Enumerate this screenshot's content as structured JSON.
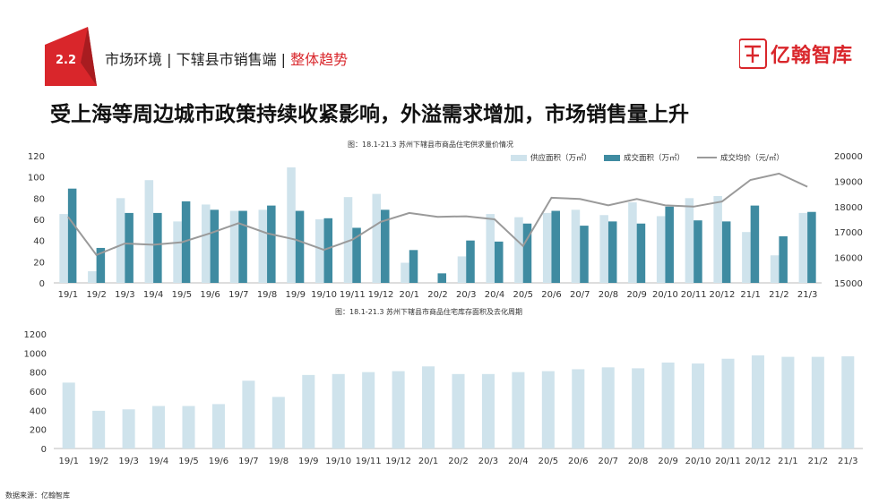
{
  "header": {
    "section_number": "2.2",
    "breadcrumb_part1": "市场环境 | 下辖县市销售端 | ",
    "breadcrumb_highlight": "整体趋势",
    "logo_text": "亿翰智库",
    "brand_color": "#d9262b"
  },
  "headline": "受上海等周边城市政策持续收紧影响，外溢需求增加，市场销售量上升",
  "source_note": "数据来源：亿翰智库",
  "chart_data": [
    {
      "type": "bar",
      "title": "图：18.1-21.3 苏州下辖县市商品住宅供求量价情况",
      "categories": [
        "19/1",
        "19/2",
        "19/3",
        "19/4",
        "19/5",
        "19/6",
        "19/7",
        "19/8",
        "19/9",
        "19/10",
        "19/11",
        "19/12",
        "20/1",
        "20/2",
        "20/3",
        "20/4",
        "20/5",
        "20/6",
        "20/7",
        "20/8",
        "20/9",
        "20/10",
        "20/11",
        "20/12",
        "21/1",
        "21/2",
        "21/3"
      ],
      "ylim": [
        0,
        120
      ],
      "yticks": [
        0,
        20,
        40,
        60,
        80,
        100,
        120
      ],
      "y2lim": [
        15000,
        20000
      ],
      "y2ticks": [
        15000,
        16000,
        17000,
        18000,
        19000,
        20000
      ],
      "series": [
        {
          "name": "供应面积（万㎡）",
          "color": "#cfe3ec",
          "axis": "left",
          "values": [
            65,
            11,
            80,
            97,
            58,
            74,
            68,
            69,
            109,
            60,
            81,
            84,
            19,
            0,
            25,
            65,
            62,
            66,
            69,
            64,
            76,
            63,
            80,
            82,
            48,
            26,
            66
          ]
        },
        {
          "name": "成交面积（万㎡）",
          "color": "#3f8ba1",
          "axis": "left",
          "values": [
            89,
            33,
            66,
            66,
            77,
            69,
            68,
            73,
            68,
            61,
            52,
            69,
            31,
            9,
            40,
            39,
            56,
            68,
            54,
            58,
            56,
            72,
            59,
            58,
            73,
            44,
            67
          ]
        },
        {
          "name": "成交均价（元/㎡）",
          "color": "#9a9a9a",
          "axis": "right",
          "type": "line",
          "values": [
            17600,
            16100,
            16550,
            16500,
            16600,
            16950,
            17350,
            16950,
            16700,
            16300,
            16700,
            17400,
            17750,
            17600,
            17620,
            17500,
            16450,
            18350,
            18300,
            18050,
            18300,
            18050,
            18000,
            18200,
            19050,
            19300,
            18780
          ]
        }
      ]
    },
    {
      "type": "bar",
      "title": "图：18.1-21.3 苏州下辖县市商品住宅库存面积及去化周期",
      "categories": [
        "19/1",
        "19/2",
        "19/3",
        "19/4",
        "19/5",
        "19/6",
        "19/7",
        "19/8",
        "19/9",
        "19/10",
        "19/11",
        "19/12",
        "20/1",
        "20/2",
        "20/3",
        "20/4",
        "20/5",
        "20/6",
        "20/7",
        "20/8",
        "20/9",
        "20/10",
        "20/11",
        "20/12",
        "21/1",
        "21/2",
        "21/3"
      ],
      "ylim": [
        0,
        1200
      ],
      "yticks": [
        0,
        200,
        400,
        600,
        800,
        1000,
        1200
      ],
      "series": [
        {
          "name": "",
          "color": "#cfe3ec",
          "values": [
            690,
            395,
            410,
            445,
            445,
            465,
            710,
            540,
            770,
            780,
            800,
            810,
            860,
            780,
            780,
            800,
            810,
            830,
            850,
            840,
            900,
            890,
            940,
            975,
            960,
            960,
            965
          ]
        }
      ]
    }
  ]
}
